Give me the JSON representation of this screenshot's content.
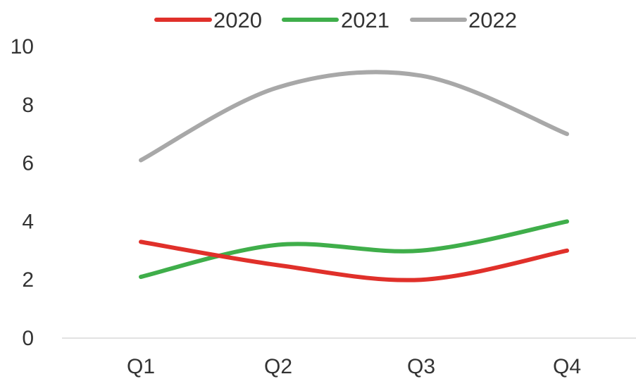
{
  "chart_data": {
    "type": "line",
    "title": "",
    "xlabel": "",
    "ylabel": "",
    "categories": [
      "Q1",
      "Q2",
      "Q3",
      "Q4"
    ],
    "ylim": [
      0,
      10
    ],
    "yticks": [
      "0",
      "2",
      "4",
      "6",
      "8",
      "10"
    ],
    "grid": false,
    "smooth": true,
    "legend_position": "top-center",
    "series": [
      {
        "name": "2020",
        "color": "#e0302a",
        "values": [
          3.3,
          2.5,
          2.0,
          3.0
        ]
      },
      {
        "name": "2021",
        "color": "#3fae4a",
        "values": [
          2.1,
          3.2,
          3.0,
          4.0
        ]
      },
      {
        "name": "2022",
        "color": "#a8a8a8",
        "values": [
          6.1,
          8.6,
          9.0,
          7.0
        ]
      }
    ]
  }
}
